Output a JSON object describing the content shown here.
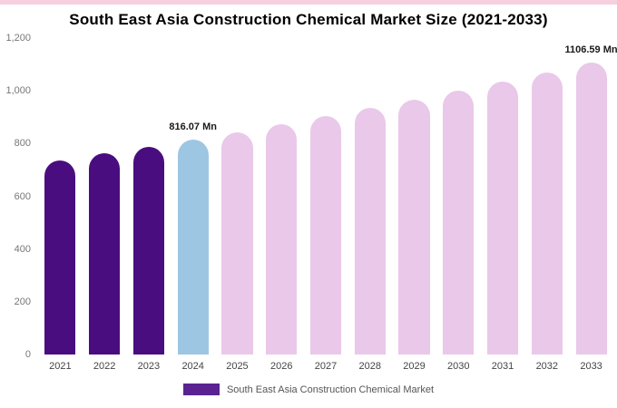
{
  "page": {
    "title": "South East Asia Construction Chemical Market Size (2021-2033)"
  },
  "chart_data": {
    "type": "bar",
    "title": "South East Asia Construction Chemical Market Size (2021-2033)",
    "categories": [
      "2021",
      "2022",
      "2023",
      "2024",
      "2025",
      "2026",
      "2027",
      "2028",
      "2029",
      "2030",
      "2031",
      "2032",
      "2033"
    ],
    "values": [
      737.3,
      762.7,
      788.9,
      816.07,
      844.1,
      873.2,
      903.2,
      934.3,
      966.4,
      999.7,
      1034.1,
      1069.6,
      1106.59
    ],
    "ylim": [
      0,
      1200
    ],
    "yticks": [
      0,
      200,
      400,
      600,
      800,
      1000,
      1200
    ],
    "ytick_labels": [
      "0",
      "200",
      "400",
      "600",
      "800",
      "1,000",
      "1,200"
    ],
    "grid": false,
    "legend_position": "bottom",
    "annotations": [
      {
        "category": "2024",
        "text": "816.07 Mn"
      },
      {
        "category": "2033",
        "text": "1106.59 Mn"
      }
    ],
    "bar_colors": {
      "historical": "#4A0D7F",
      "current": "#9DC6E3",
      "forecast": "#EAC8EA"
    },
    "color_keys": [
      "historical",
      "historical",
      "historical",
      "current",
      "forecast",
      "forecast",
      "forecast",
      "forecast",
      "forecast",
      "forecast",
      "forecast",
      "forecast",
      "forecast"
    ]
  },
  "legend": {
    "label": "South East Asia Construction Chemical Market",
    "swatch_color": "#5A2391"
  }
}
